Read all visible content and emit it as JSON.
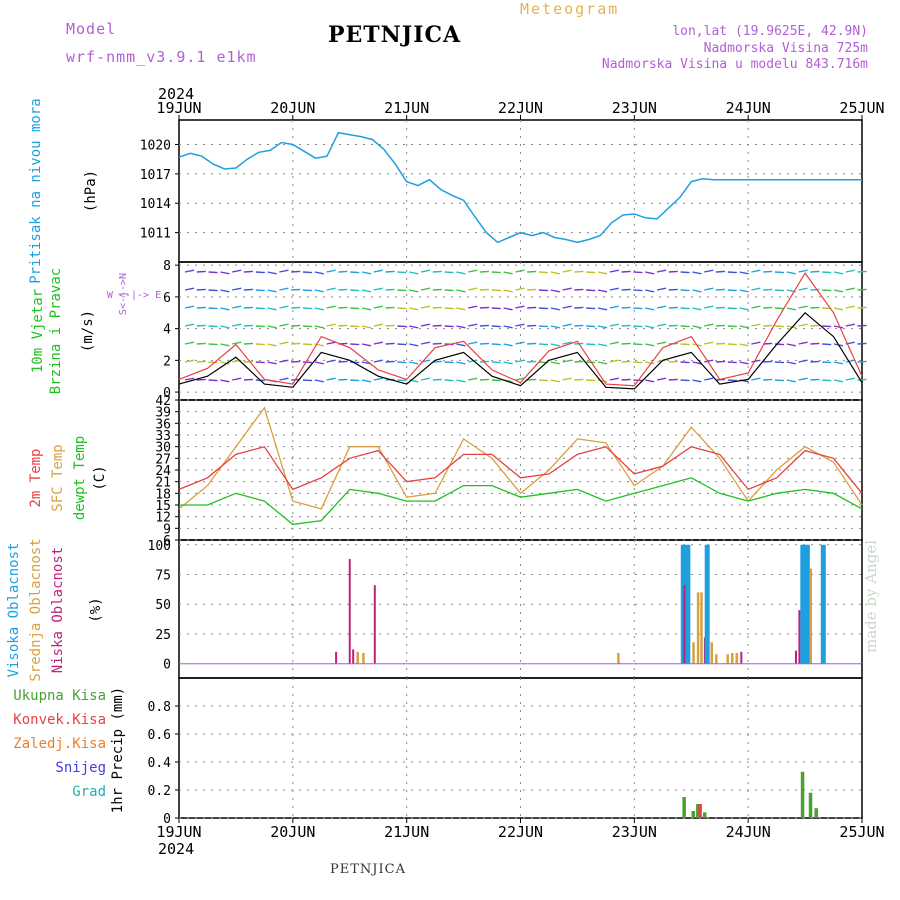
{
  "header": {
    "model_label": "Model",
    "run_label": "wrf-nmm_v3.9.1  e1km",
    "title": "PETNJICA",
    "meteogram_label": "Meteogram",
    "lonlat": "lon,lat (19.9625E, 42.9N)",
    "elevation": "Nadmorska Visina 725m",
    "model_elevation": "Nadmorska Visina u modelu 843.716m",
    "made_by": "made by Angel",
    "footer": "PETNJICA"
  },
  "time_axis": {
    "year": "2024",
    "dates": [
      "19JUN",
      "20JUN",
      "21JUN",
      "22JUN",
      "23JUN",
      "24JUN",
      "25JUN"
    ]
  },
  "colors": {
    "pressure": "#1ea0e0",
    "t2m": "#e84040",
    "tsfc": "#d8a040",
    "dewpt": "#20c020",
    "wind_speed": "#000000",
    "wind_gust": "#e84040",
    "cloud_high": "#1ea0e0",
    "cloud_mid": "#d8a040",
    "cloud_low": "#c0207a",
    "precip_total": "#4aa030",
    "precip_conv": "#e84040",
    "precip_frz": "#e88030",
    "snow": "#4040e0",
    "grad": "#20b0b0"
  },
  "chart_data": [
    {
      "type": "line",
      "panel": "pressure",
      "ylabel_main": "Pritisak na nivou mora",
      "ylabel_unit": "(hPa)",
      "yticks": [
        "1020",
        "1017",
        "1014",
        "1011"
      ],
      "ylim": [
        1008,
        1022.5
      ],
      "x": [
        0,
        0.1,
        0.2,
        0.3,
        0.4,
        0.5,
        0.6,
        0.7,
        0.8,
        0.9,
        1.0,
        1.1,
        1.2,
        1.3,
        1.4,
        1.5,
        1.6,
        1.7,
        1.8,
        1.9,
        2.0,
        2.1,
        2.2,
        2.3,
        2.4,
        2.5,
        2.6,
        2.7,
        2.8,
        2.9,
        3.0,
        3.1,
        3.2,
        3.3,
        3.4,
        3.5,
        3.6,
        3.7,
        3.8,
        3.9,
        4.0,
        4.1,
        4.2,
        4.3,
        4.4,
        4.5,
        4.6,
        4.7,
        4.8,
        4.9,
        5.0,
        5.1,
        5.2,
        5.3,
        5.4,
        5.5,
        5.6,
        5.7,
        5.8,
        5.9,
        6.0
      ],
      "values": [
        1018.7,
        1019.1,
        1018.8,
        1018.0,
        1017.5,
        1017.6,
        1018.5,
        1019.2,
        1019.4,
        1020.2,
        1020.0,
        1019.3,
        1018.6,
        1018.8,
        1021.2,
        1021.0,
        1020.8,
        1020.5,
        1019.5,
        1018.0,
        1016.2,
        1015.8,
        1016.4,
        1015.4,
        1014.8,
        1014.3,
        1012.6,
        1011.0,
        1010.0,
        1010.5,
        1011.0,
        1010.7,
        1011.0,
        1010.5,
        1010.3,
        1010.0,
        1010.3,
        1010.7,
        1012.0,
        1012.8,
        1012.9,
        1012.5,
        1012.4,
        1013.5,
        1014.6,
        1016.2,
        1016.5,
        1016.4,
        1016.4,
        1016.4,
        1016.4,
        1016.4,
        1016.4,
        1016.4,
        1016.4,
        1016.4,
        1016.4,
        1016.4,
        1016.4,
        1016.4,
        1016.4
      ]
    },
    {
      "type": "line",
      "panel": "wind",
      "ylabel_main": "10m Vjetar",
      "ylabel_main2": "Brzina i Pravac",
      "ylabel_unit": "(m/s)",
      "compass": "W <-|-> E",
      "compass_v": "S<-|->N",
      "yticks": [
        "8",
        "6",
        "4",
        "2",
        "0"
      ],
      "ylim": [
        -0.5,
        8.2
      ],
      "x": [
        0,
        0.25,
        0.5,
        0.75,
        1.0,
        1.25,
        1.5,
        1.75,
        2.0,
        2.25,
        2.5,
        2.75,
        3.0,
        3.25,
        3.5,
        3.75,
        4.0,
        4.25,
        4.5,
        4.75,
        5.0,
        5.25,
        5.5,
        5.75,
        6.0
      ],
      "series": [
        {
          "name": "speed",
          "values": [
            0.5,
            1.0,
            2.2,
            0.5,
            0.3,
            2.5,
            2.0,
            1.0,
            0.5,
            2.0,
            2.5,
            1.0,
            0.4,
            2.0,
            2.5,
            0.3,
            0.2,
            2.0,
            2.5,
            0.5,
            0.8,
            3.0,
            5.0,
            3.5,
            0.6
          ]
        },
        {
          "name": "gust",
          "values": [
            0.8,
            1.5,
            3.0,
            0.8,
            0.5,
            3.5,
            2.8,
            1.4,
            0.8,
            2.8,
            3.2,
            1.4,
            0.6,
            2.6,
            3.2,
            0.5,
            0.4,
            2.8,
            3.5,
            0.8,
            1.2,
            4.5,
            7.5,
            5.0,
            1.0
          ]
        }
      ]
    },
    {
      "type": "line",
      "panel": "temperature",
      "ylabel_1": "2m Temp",
      "ylabel_2": "SFC Temp",
      "ylabel_3": "dewpt Temp",
      "ylabel_unit": "(C)",
      "yticks": [
        "42",
        "39",
        "36",
        "33",
        "30",
        "27",
        "24",
        "21",
        "18",
        "15",
        "12",
        "9",
        "6"
      ],
      "ylim": [
        6,
        42
      ],
      "x": [
        0,
        0.25,
        0.5,
        0.75,
        1.0,
        1.25,
        1.5,
        1.75,
        2.0,
        2.25,
        2.5,
        2.75,
        3.0,
        3.25,
        3.5,
        3.75,
        4.0,
        4.25,
        4.5,
        4.75,
        5.0,
        5.25,
        5.5,
        5.75,
        6.0
      ],
      "series": [
        {
          "name": "2m Temp",
          "values": [
            19,
            22,
            28,
            30,
            19,
            22,
            27,
            29,
            21,
            22,
            28,
            28,
            22,
            23,
            28,
            30,
            23,
            25,
            30,
            28,
            19,
            22,
            29,
            27,
            18
          ]
        },
        {
          "name": "SFC Temp",
          "values": [
            14,
            20,
            30,
            40,
            16,
            14,
            30,
            30,
            17,
            18,
            32,
            27,
            18,
            24,
            32,
            31,
            20,
            25,
            35,
            27,
            16,
            24,
            30,
            26,
            15
          ]
        },
        {
          "name": "dewpt Temp",
          "values": [
            15,
            15,
            18,
            16,
            10,
            11,
            19,
            18,
            16,
            16,
            20,
            20,
            17,
            18,
            19,
            16,
            18,
            20,
            22,
            18,
            16,
            18,
            19,
            18,
            14
          ]
        }
      ]
    },
    {
      "type": "bar",
      "panel": "cloud",
      "ylabel_1": "Visoka Oblacnost",
      "ylabel_2": "Srednja Oblacnost",
      "ylabel_3": "Niska Oblacnost",
      "ylabel_unit": "(%)",
      "yticks": [
        "100",
        "75",
        "50",
        "25",
        "0"
      ],
      "ylim": [
        0,
        100
      ],
      "bars": [
        {
          "layer": "low",
          "x": 1.38,
          "v": 10
        },
        {
          "layer": "low",
          "x": 1.5,
          "v": 88
        },
        {
          "layer": "low",
          "x": 1.53,
          "v": 12
        },
        {
          "layer": "mid",
          "x": 1.57,
          "v": 10
        },
        {
          "layer": "mid",
          "x": 1.62,
          "v": 9
        },
        {
          "layer": "low",
          "x": 1.72,
          "v": 66
        },
        {
          "layer": "mid",
          "x": 3.86,
          "v": 9
        },
        {
          "layer": "high",
          "x": 4.43,
          "v": 100
        },
        {
          "layer": "high",
          "x": 4.47,
          "v": 100
        },
        {
          "layer": "low",
          "x": 4.44,
          "v": 66
        },
        {
          "layer": "mid",
          "x": 4.52,
          "v": 18
        },
        {
          "layer": "mid",
          "x": 4.56,
          "v": 60
        },
        {
          "layer": "mid",
          "x": 4.59,
          "v": 60
        },
        {
          "layer": "low",
          "x": 4.62,
          "v": 22
        },
        {
          "layer": "high",
          "x": 4.64,
          "v": 100
        },
        {
          "layer": "mid",
          "x": 4.68,
          "v": 18
        },
        {
          "layer": "mid",
          "x": 4.72,
          "v": 8
        },
        {
          "layer": "mid",
          "x": 4.82,
          "v": 8
        },
        {
          "layer": "mid",
          "x": 4.86,
          "v": 9
        },
        {
          "layer": "mid",
          "x": 4.9,
          "v": 9
        },
        {
          "layer": "low",
          "x": 4.94,
          "v": 10
        },
        {
          "layer": "low",
          "x": 5.42,
          "v": 11
        },
        {
          "layer": "low",
          "x": 5.45,
          "v": 45
        },
        {
          "layer": "high",
          "x": 5.48,
          "v": 100
        },
        {
          "layer": "high",
          "x": 5.52,
          "v": 100
        },
        {
          "layer": "mid",
          "x": 5.55,
          "v": 80
        },
        {
          "layer": "high",
          "x": 5.66,
          "v": 100
        }
      ]
    },
    {
      "type": "bar",
      "panel": "precip",
      "legend": [
        "Ukupna Kisa",
        "Konvek.Kisa",
        "Zaledj.Kisa",
        "Snijeg",
        "Grad"
      ],
      "ylabel_unit": "1hr Precip (mm)",
      "yticks": [
        "0.8",
        "0.6",
        "0.4",
        "0.2",
        "0"
      ],
      "ylim": [
        0,
        1.0
      ],
      "bars": [
        {
          "kind": "total",
          "x": 4.44,
          "v": 0.15
        },
        {
          "kind": "total",
          "x": 4.52,
          "v": 0.05
        },
        {
          "kind": "total",
          "x": 4.56,
          "v": 0.1
        },
        {
          "kind": "conv",
          "x": 4.58,
          "v": 0.1
        },
        {
          "kind": "total",
          "x": 4.62,
          "v": 0.04
        },
        {
          "kind": "total",
          "x": 5.48,
          "v": 0.33
        },
        {
          "kind": "total",
          "x": 5.55,
          "v": 0.18
        },
        {
          "kind": "total",
          "x": 5.6,
          "v": 0.07
        }
      ]
    }
  ]
}
